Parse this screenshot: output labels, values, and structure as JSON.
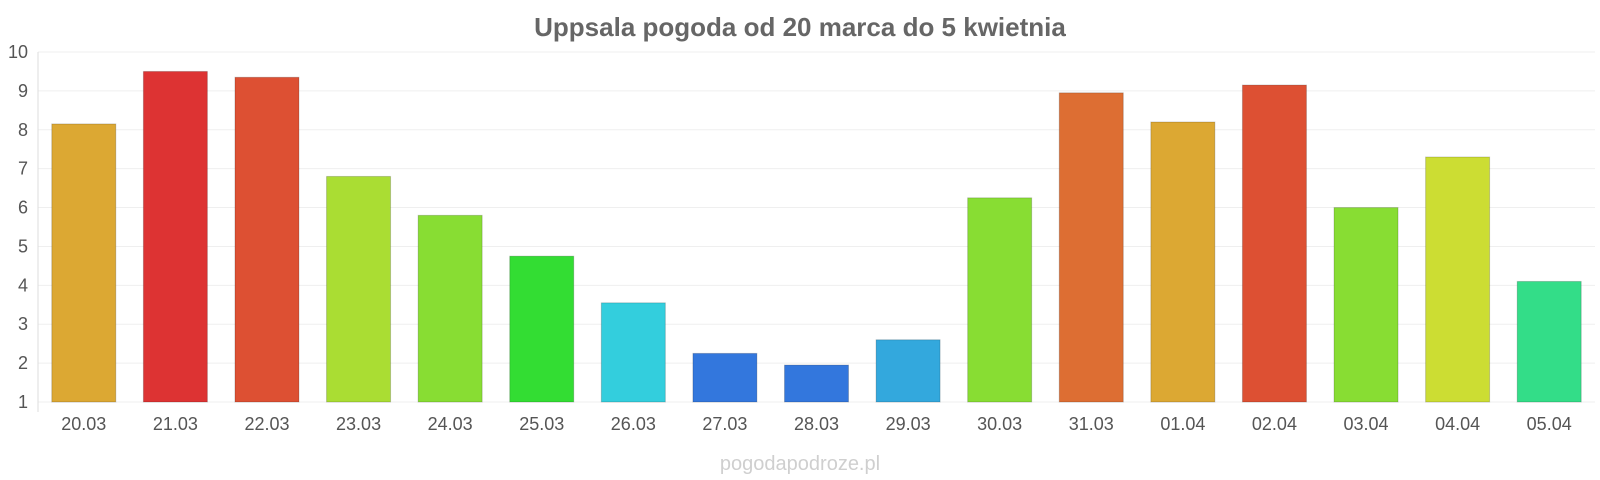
{
  "chart_data": {
    "type": "bar",
    "title": "Uppsala pogoda od 20 marca do 5 kwietnia",
    "xlabel": "",
    "ylabel": "",
    "ylim": [
      1,
      10
    ],
    "yticks": [
      1,
      2,
      3,
      4,
      5,
      6,
      7,
      8,
      9,
      10
    ],
    "grid": true,
    "categories": [
      "20.03",
      "21.03",
      "22.03",
      "23.03",
      "24.03",
      "25.03",
      "26.03",
      "27.03",
      "28.03",
      "29.03",
      "30.03",
      "31.03",
      "01.04",
      "02.04",
      "03.04",
      "04.04",
      "05.04"
    ],
    "values": [
      8.15,
      9.5,
      9.35,
      6.8,
      5.8,
      4.75,
      3.55,
      2.25,
      1.95,
      2.6,
      6.25,
      8.95,
      8.2,
      9.15,
      6.0,
      7.3,
      4.1
    ],
    "bar_colors": [
      "#dca833",
      "#dd3333",
      "#dd5033",
      "#aadd33",
      "#88dd33",
      "#33dd33",
      "#33cedd",
      "#3377dd",
      "#3377dd",
      "#33a8dd",
      "#88dd33",
      "#dd6e33",
      "#dca833",
      "#dd5033",
      "#88dd33",
      "#ccdd33",
      "#33dd88"
    ]
  },
  "watermark": "pogodapodroze.pl"
}
